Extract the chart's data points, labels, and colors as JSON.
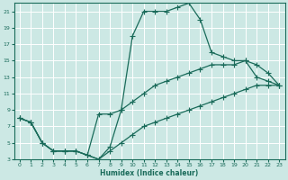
{
  "xlabel": "Humidex (Indice chaleur)",
  "bg_color": "#cce8e4",
  "grid_color": "#ffffff",
  "line_color": "#1a6b5a",
  "xlim": [
    -0.5,
    23.5
  ],
  "ylim": [
    3,
    22
  ],
  "xticks": [
    0,
    1,
    2,
    3,
    4,
    5,
    6,
    7,
    8,
    9,
    10,
    11,
    12,
    13,
    14,
    15,
    16,
    17,
    18,
    19,
    20,
    21,
    22,
    23
  ],
  "yticks": [
    3,
    5,
    7,
    9,
    11,
    13,
    15,
    17,
    19,
    21
  ],
  "line1_x": [
    0,
    1,
    2,
    3,
    4,
    5,
    6,
    7,
    8,
    9,
    10,
    11,
    12,
    13,
    14,
    15,
    16,
    17,
    18,
    19,
    20,
    21,
    22,
    23
  ],
  "line1_y": [
    8,
    7.5,
    5,
    4,
    4,
    4,
    3.5,
    3,
    4.5,
    9,
    18,
    21,
    21,
    21,
    21.5,
    22,
    20,
    16,
    15.5,
    15,
    15,
    13,
    12.5,
    12
  ],
  "line2_x": [
    0,
    1,
    2,
    3,
    4,
    5,
    6,
    7,
    8,
    9,
    10,
    11,
    12,
    13,
    14,
    15,
    16,
    17,
    18,
    19,
    20,
    21,
    22,
    23
  ],
  "line2_y": [
    8,
    7.5,
    5,
    4,
    4,
    4,
    3.5,
    8.5,
    8.5,
    9,
    10,
    11,
    12,
    12.5,
    13,
    13.5,
    14,
    14.5,
    14.5,
    14.5,
    15,
    14.5,
    13.5,
    12
  ],
  "line3_x": [
    0,
    1,
    2,
    3,
    4,
    5,
    6,
    7,
    8,
    9,
    10,
    11,
    12,
    13,
    14,
    15,
    16,
    17,
    18,
    19,
    20,
    21,
    22,
    23
  ],
  "line3_y": [
    8,
    7.5,
    5,
    4,
    4,
    4,
    3.5,
    3,
    4,
    5,
    6,
    7,
    7.5,
    8,
    8.5,
    9,
    9.5,
    10,
    10.5,
    11,
    11.5,
    12,
    12,
    12
  ]
}
